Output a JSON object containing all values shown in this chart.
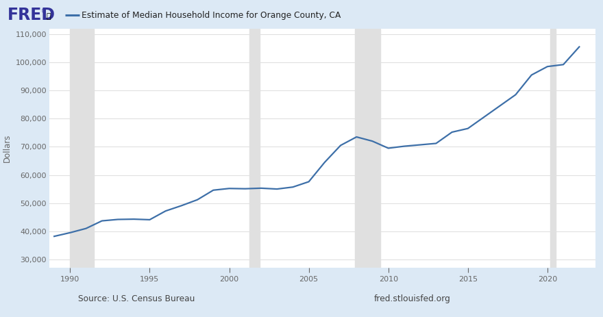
{
  "title": "Estimate of Median Household Income for Orange County, CA",
  "ylabel": "Dollars",
  "fig_bg_color": "#dce9f5",
  "plot_bg_color": "#ffffff",
  "header_bg_color": "#dce9f5",
  "line_color": "#3d6fa8",
  "line_width": 1.6,
  "years": [
    1989,
    1990,
    1991,
    1992,
    1993,
    1994,
    1995,
    1996,
    1997,
    1998,
    1999,
    2000,
    2001,
    2002,
    2003,
    2004,
    2005,
    2006,
    2007,
    2008,
    2009,
    2010,
    2011,
    2012,
    2013,
    2014,
    2015,
    2016,
    2017,
    2018,
    2019,
    2020,
    2021,
    2022
  ],
  "values": [
    38200,
    39500,
    41000,
    43700,
    44200,
    44300,
    44100,
    47200,
    49100,
    51200,
    54600,
    55200,
    55100,
    55300,
    55000,
    55700,
    57600,
    64500,
    70500,
    73500,
    72000,
    69500,
    70200,
    70700,
    71200,
    75200,
    76500,
    80500,
    84500,
    88500,
    95500,
    98500,
    99200,
    105500
  ],
  "recession_bands": [
    {
      "start": 1990.0,
      "end": 1991.5
    },
    {
      "start": 2001.25,
      "end": 2001.92
    },
    {
      "start": 2007.92,
      "end": 2009.5
    },
    {
      "start": 2020.17,
      "end": 2020.5
    }
  ],
  "ylim": [
    27000,
    112000
  ],
  "xlim": [
    1988.7,
    2023.0
  ],
  "yticks": [
    30000,
    40000,
    50000,
    60000,
    70000,
    80000,
    90000,
    100000,
    110000
  ],
  "xticks": [
    1990,
    1995,
    2000,
    2005,
    2010,
    2015,
    2020
  ],
  "source_left": "Source: U.S. Census Bureau",
  "source_right": "fred.stlouisfed.org",
  "grid_color": "#e0e0e0",
  "recession_color": "#e0e0e0",
  "fred_text_color": "#333399",
  "fred_reg_color": "#cc3333",
  "tick_color": "#666666",
  "label_color": "#666666"
}
